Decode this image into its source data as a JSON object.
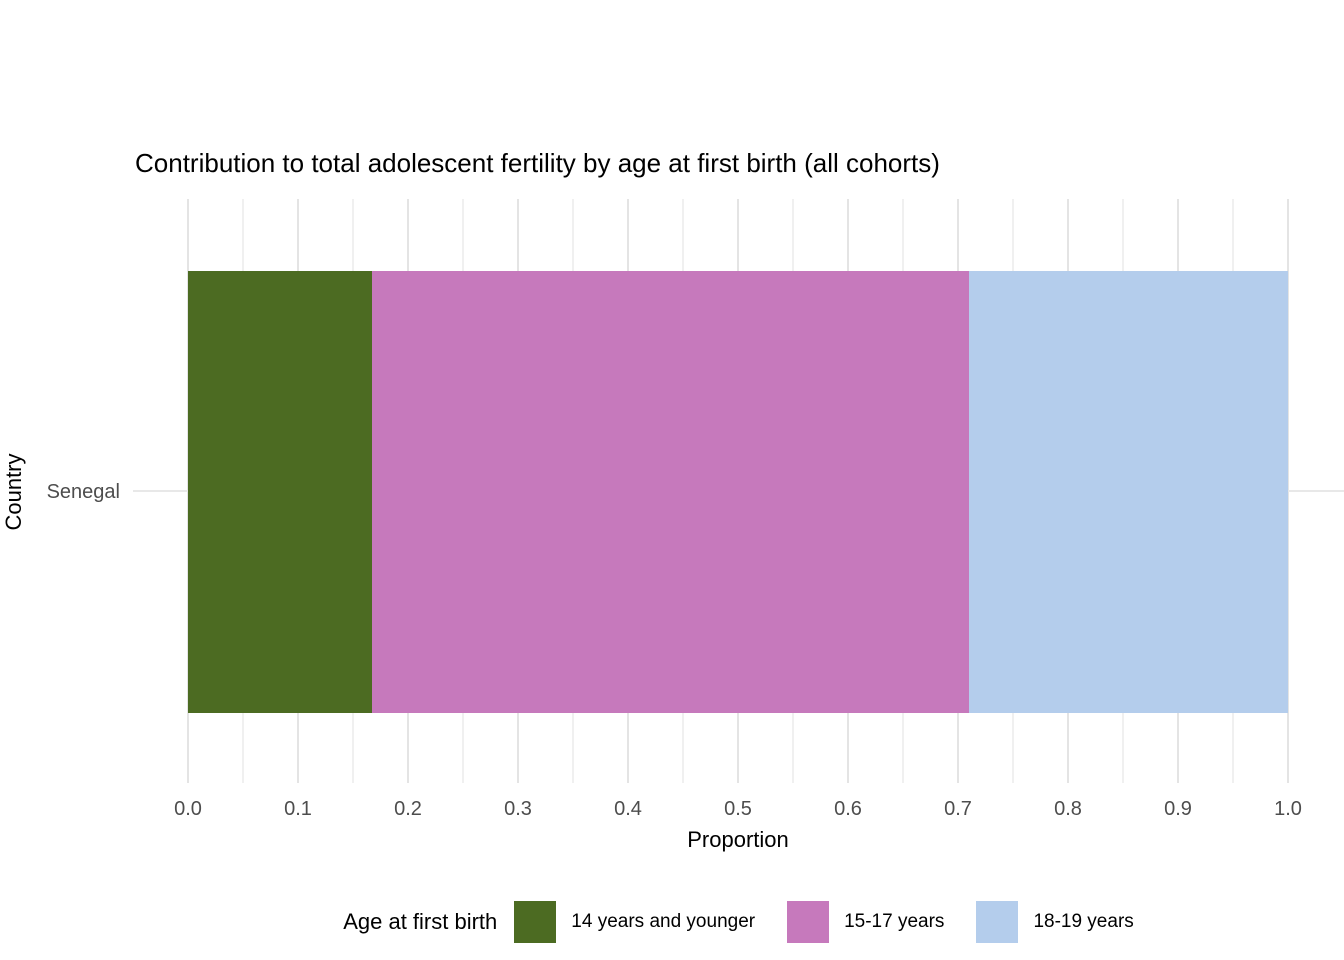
{
  "title": "Contribution to total adolescent fertility by age at first birth (all cohorts)",
  "chart_data": {
    "type": "bar",
    "orientation": "horizontal",
    "stacked": true,
    "title": "Contribution to total adolescent fertility by age at first birth (all cohorts)",
    "xlabel": "Proportion",
    "ylabel": "Country",
    "categories": [
      "Senegal"
    ],
    "series": [
      {
        "name": "14 years and younger",
        "color": "#4C6B22",
        "values": [
          0.167
        ]
      },
      {
        "name": "15-17 years",
        "color": "#C679BC",
        "values": [
          0.543
        ]
      },
      {
        "name": "18-19 years",
        "color": "#B4CDEC",
        "values": [
          0.29
        ]
      }
    ],
    "xlim": [
      0,
      1
    ],
    "x_major_ticks": [
      0,
      0.1,
      0.2,
      0.3,
      0.4,
      0.5,
      0.6,
      0.7,
      0.8,
      0.9,
      1.0
    ],
    "x_tick_labels": [
      "0.0",
      "0.1",
      "0.2",
      "0.3",
      "0.4",
      "0.5",
      "0.6",
      "0.7",
      "0.8",
      "0.9",
      "1.0"
    ],
    "x_minor_step": 0.05,
    "grid": "vertical light-gray major+minor, horizontal row line",
    "legend_position": "bottom",
    "legend": {
      "title": "Age at first birth",
      "entries": [
        "14 years and younger",
        "15-17 years",
        "18-19 years"
      ]
    }
  },
  "colors": {
    "background": "#FFFFFF",
    "grid_major": "#E4E4E4",
    "grid_minor": "#F0F0F0",
    "row_gridline": "#E8E8E8",
    "tick_label": "#4D4D4D",
    "title_text": "#000000",
    "segment_green": "#4C6B22",
    "segment_pink": "#C679BC",
    "segment_blue": "#B4CDEC"
  }
}
